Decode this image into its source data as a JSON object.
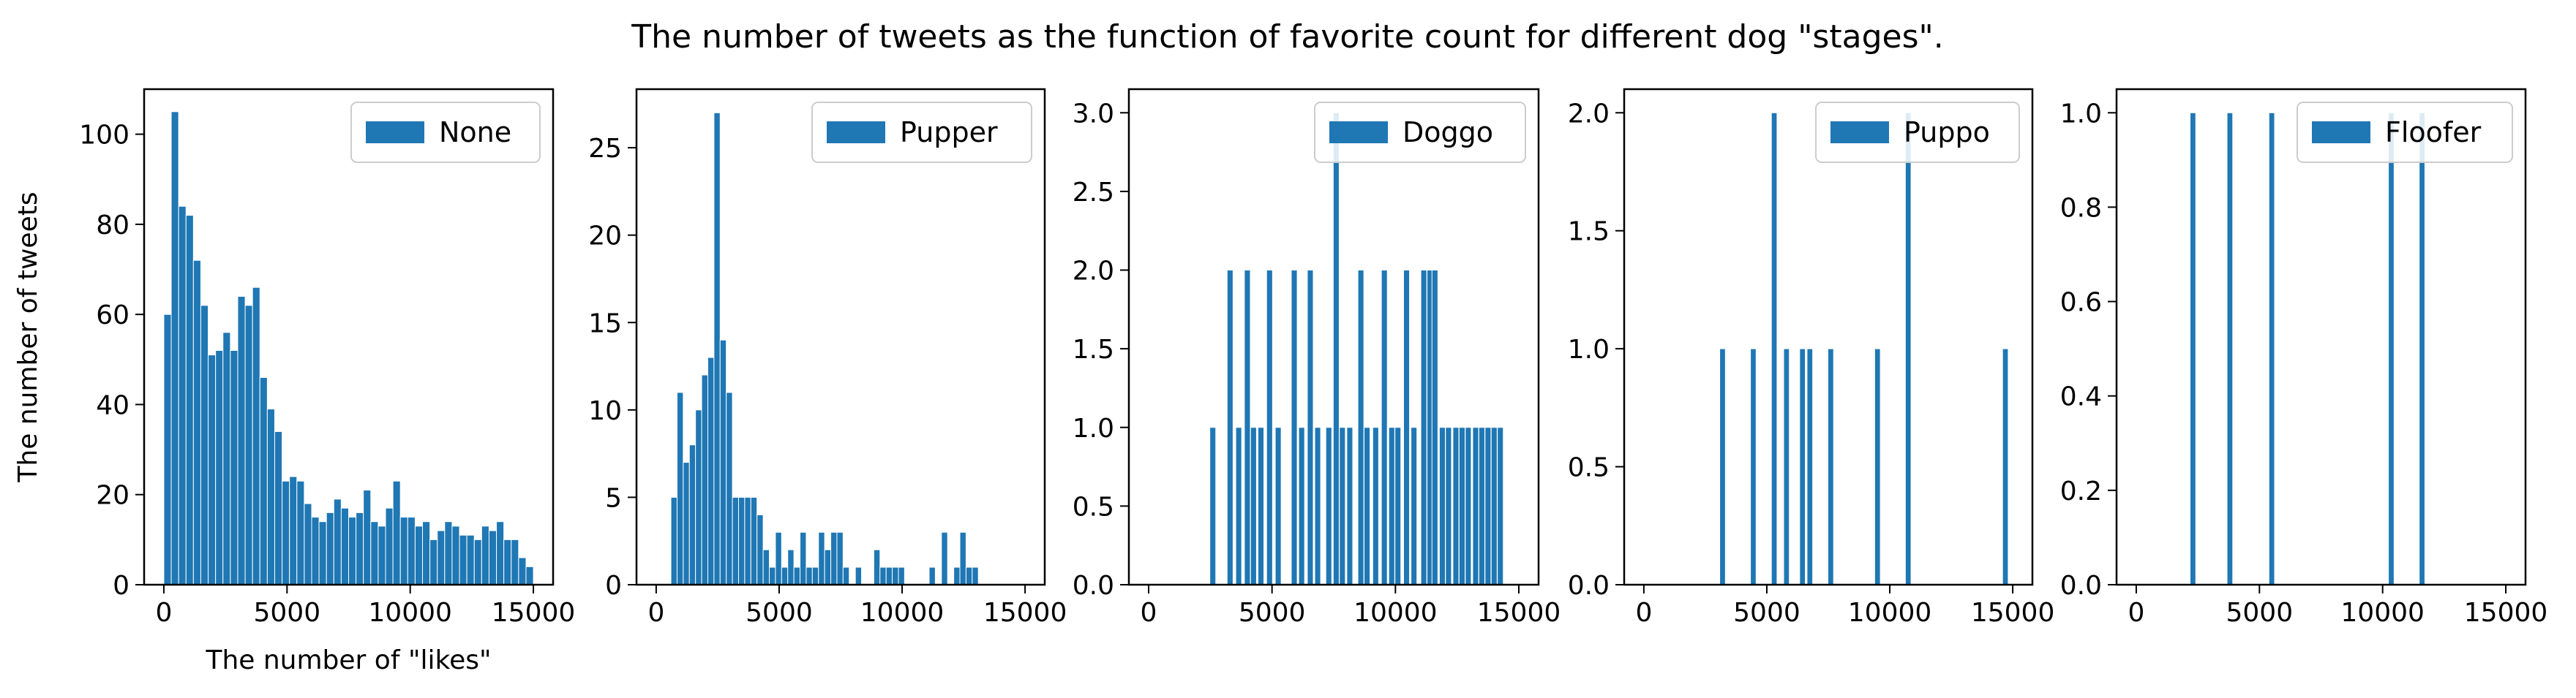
{
  "chart_data": {
    "title": "The number of tweets as the function of favorite count for different dog \"stages\".",
    "bar_color": "#1f77b4",
    "subplots": [
      {
        "type": "bar",
        "series_name": "None",
        "legend_position": "upper-right",
        "xlabel": "The number of \"likes\"",
        "ylabel": "The number of tweets",
        "xlim": [
          -800,
          15800
        ],
        "ylim": [
          0,
          110
        ],
        "xticks": [
          0,
          5000,
          10000,
          15000
        ],
        "xtick_labels": [
          "0",
          "5000",
          "10000",
          "15000"
        ],
        "yticks": [
          0,
          20,
          40,
          60,
          80,
          100
        ],
        "ytick_labels": [
          "0",
          "20",
          "40",
          "60",
          "80",
          "100"
        ],
        "bin_width": 300,
        "x": [
          150,
          450,
          750,
          1050,
          1350,
          1650,
          1950,
          2250,
          2550,
          2850,
          3150,
          3450,
          3750,
          4050,
          4350,
          4650,
          4950,
          5250,
          5550,
          5850,
          6150,
          6450,
          6750,
          7050,
          7350,
          7650,
          7950,
          8250,
          8550,
          8850,
          9150,
          9450,
          9750,
          10050,
          10350,
          10650,
          10950,
          11250,
          11550,
          11850,
          12150,
          12450,
          12750,
          13050,
          13350,
          13650,
          13950,
          14250,
          14550,
          14850
        ],
        "values": [
          60,
          105,
          84,
          82,
          72,
          62,
          51,
          52,
          56,
          52,
          64,
          62,
          66,
          46,
          39,
          34,
          23,
          24,
          23,
          18,
          15,
          14,
          16,
          19,
          17,
          15,
          16,
          21,
          14,
          13,
          17,
          23,
          15,
          15,
          13,
          14,
          10,
          12,
          14,
          13,
          11,
          11,
          10,
          13,
          12,
          14,
          10,
          10,
          6,
          4
        ]
      },
      {
        "type": "bar",
        "series_name": "Pupper",
        "legend_position": "upper-right",
        "xlabel": "",
        "ylabel": "",
        "xlim": [
          -800,
          15800
        ],
        "ylim": [
          0,
          28.35
        ],
        "xticks": [
          0,
          5000,
          10000,
          15000
        ],
        "xtick_labels": [
          "0",
          "5000",
          "10000",
          "15000"
        ],
        "yticks": [
          0,
          5,
          10,
          15,
          20,
          25
        ],
        "ytick_labels": [
          "0",
          "5",
          "10",
          "15",
          "20",
          "25"
        ],
        "bin_width": 250,
        "x": [
          725,
          975,
          1225,
          1475,
          1725,
          1975,
          2225,
          2475,
          2725,
          2975,
          3225,
          3475,
          3725,
          3975,
          4225,
          4475,
          4725,
          4975,
          5225,
          5475,
          5725,
          5975,
          6225,
          6475,
          6725,
          6975,
          7225,
          7475,
          7725,
          7975,
          8225,
          8475,
          8725,
          8975,
          9225,
          9475,
          9725,
          9975,
          10225,
          11225,
          11475,
          11725,
          11975,
          12225,
          12475,
          12725,
          12975
        ],
        "values": [
          5,
          11,
          7,
          8,
          10,
          12,
          13,
          27,
          14,
          11,
          5,
          5,
          5,
          5,
          4,
          2,
          1,
          3,
          1,
          2,
          1,
          3,
          1,
          1,
          3,
          2,
          3,
          3,
          1,
          0,
          1,
          0,
          0,
          2,
          1,
          1,
          1,
          1,
          0,
          1,
          0,
          3,
          0,
          1,
          3,
          1,
          1
        ]
      },
      {
        "type": "bar",
        "series_name": "Doggo",
        "legend_position": "upper-right",
        "xlabel": "",
        "ylabel": "",
        "xlim": [
          -800,
          15800
        ],
        "ylim": [
          0,
          3.15
        ],
        "xticks": [
          0,
          5000,
          10000,
          15000
        ],
        "xtick_labels": [
          "0",
          "5000",
          "10000",
          "15000"
        ],
        "yticks": [
          0.0,
          0.5,
          1.0,
          1.5,
          2.0,
          2.5,
          3.0
        ],
        "ytick_labels": [
          "0.0",
          "0.5",
          "1.0",
          "1.5",
          "2.0",
          "2.5",
          "3.0"
        ],
        "bin_width": 240,
        "x": [
          2600,
          3300,
          3650,
          4000,
          4250,
          4550,
          4900,
          5250,
          5900,
          6200,
          6550,
          6850,
          7300,
          7600,
          7850,
          8150,
          8600,
          8850,
          9200,
          9550,
          9850,
          10100,
          10450,
          10750,
          11150,
          11400,
          11600,
          11900,
          12150,
          12450,
          12700,
          12950,
          13250,
          13500,
          13750,
          14000,
          14250
        ],
        "values": [
          1,
          2,
          1,
          2,
          1,
          1,
          2,
          1,
          2,
          1,
          2,
          1,
          1,
          3,
          1,
          1,
          2,
          1,
          1,
          2,
          1,
          1,
          2,
          1,
          2,
          2,
          2,
          1,
          1,
          1,
          1,
          1,
          1,
          1,
          1,
          1,
          1
        ]
      },
      {
        "type": "bar",
        "series_name": "Puppo",
        "legend_position": "upper-right",
        "xlabel": "",
        "ylabel": "",
        "xlim": [
          -800,
          15800
        ],
        "ylim": [
          0,
          2.1
        ],
        "xticks": [
          0,
          5000,
          10000,
          15000
        ],
        "xtick_labels": [
          "0",
          "5000",
          "10000",
          "15000"
        ],
        "yticks": [
          0.0,
          0.5,
          1.0,
          1.5,
          2.0
        ],
        "ytick_labels": [
          "0.0",
          "0.5",
          "1.0",
          "1.5",
          "2.0"
        ],
        "bin_width": 230,
        "x": [
          3200,
          4450,
          5300,
          5800,
          6450,
          6750,
          7600,
          9500,
          10750,
          14700
        ],
        "values": [
          1,
          1,
          2,
          1,
          1,
          1,
          1,
          1,
          2,
          1
        ]
      },
      {
        "type": "bar",
        "series_name": "Floofer",
        "legend_position": "upper-right",
        "xlabel": "",
        "ylabel": "",
        "xlim": [
          -800,
          15800
        ],
        "ylim": [
          0,
          1.05
        ],
        "xticks": [
          0,
          5000,
          10000,
          15000
        ],
        "xtick_labels": [
          "0",
          "5000",
          "10000",
          "15000"
        ],
        "yticks": [
          0.0,
          0.2,
          0.4,
          0.6,
          0.8,
          1.0
        ],
        "ytick_labels": [
          "0.0",
          "0.2",
          "0.4",
          "0.6",
          "0.8",
          "1.0"
        ],
        "bin_width": 230,
        "x": [
          2300,
          3800,
          5500,
          10350,
          11600
        ],
        "values": [
          1,
          1,
          1,
          1,
          1
        ]
      }
    ]
  }
}
